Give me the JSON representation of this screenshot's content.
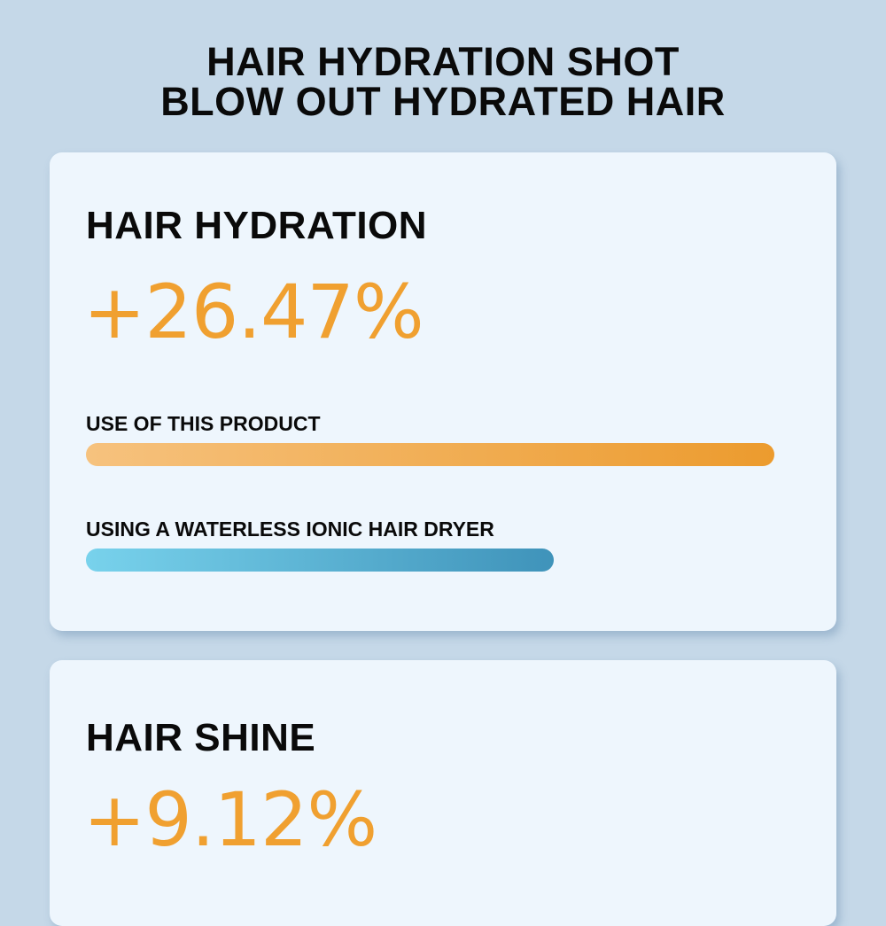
{
  "header": {
    "line1": "HAIR HYDRATION SHOT",
    "line2": "BLOW OUT HYDRATED HAIR"
  },
  "cards": [
    {
      "heading": "HAIR HYDRATION",
      "value": "+26.47%",
      "bars": [
        {
          "label": "USE OF THIS PRODUCT",
          "relative_level": 1.0,
          "color_start": "#f6c27e",
          "color_end": "#ec9b2e"
        },
        {
          "label": "USING A WATERLESS IONIC HAIR DRYER",
          "relative_level": 0.68,
          "color_start": "#78d2ec",
          "color_end": "#3f93ba"
        }
      ]
    },
    {
      "heading": "HAIR SHINE",
      "value": "+9.12%"
    }
  ],
  "colors": {
    "background": "#c5d8e8",
    "card": "#eef6fd",
    "accent": "#f0a030"
  }
}
